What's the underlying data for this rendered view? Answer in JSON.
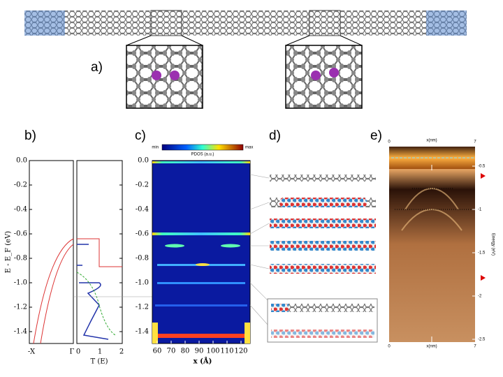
{
  "panel_a": {
    "label": "a)"
  },
  "panel_b": {
    "label": "b)",
    "y_axis_label": "E - E_F (eV)",
    "y_ticks": [
      "0.0",
      "-0.2",
      "-0.4",
      "-0.6",
      "-0.8",
      "-1.0",
      "-1.2",
      "-1.4"
    ],
    "x_ticks_left": [
      "-X",
      "Γ"
    ],
    "x_ticks_right": [
      "0",
      "1",
      "2"
    ],
    "x_axis_label": "T (E)"
  },
  "panel_c": {
    "label": "c)",
    "colorbar": {
      "min": "min",
      "max": "max",
      "title": "PDOS (a.u.)"
    },
    "y_ticks": [
      "0.0",
      "-0.2",
      "-0.4",
      "-0.6",
      "-0.8",
      "-1.0",
      "-1.2",
      "-1.4"
    ],
    "x_ticks": [
      "60",
      "70",
      "80",
      "90",
      "100",
      "110",
      "120"
    ],
    "x_axis_label": "x (Å)"
  },
  "panel_d": {
    "label": "d)"
  },
  "panel_e": {
    "label": "e)",
    "top_axis": {
      "label": "x(nm)",
      "ticks": [
        "0",
        "7"
      ]
    },
    "right_ticks": [
      "-0.5",
      "-1",
      "-1.5",
      "-2",
      "-2.5"
    ],
    "right_axis_label": "Energy (eV)",
    "bottom_axis": {
      "label": "x(nm)",
      "ticks": [
        "0",
        "7"
      ]
    }
  }
}
